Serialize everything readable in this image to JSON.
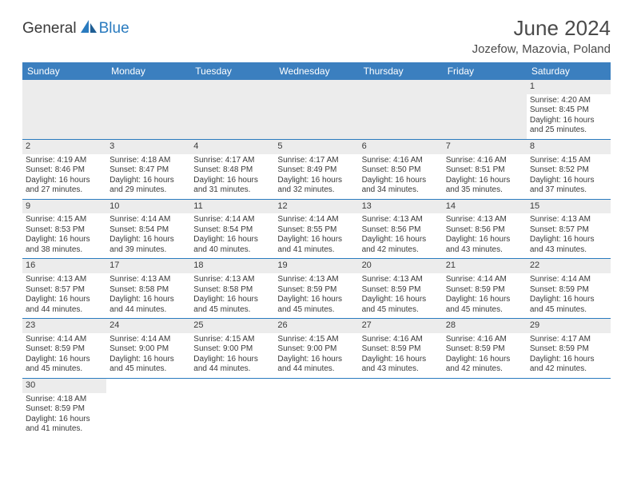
{
  "brand": {
    "part1": "General",
    "part2": "Blue"
  },
  "title": "June 2024",
  "location": "Jozefow, Mazovia, Poland",
  "colors": {
    "header_bg": "#3b7fbf",
    "header_text": "#ffffff",
    "shade": "#ececec",
    "rule": "#2a7bbf",
    "text": "#3a3a3a",
    "brand_blue": "#2a7bbf"
  },
  "weekdays": [
    "Sunday",
    "Monday",
    "Tuesday",
    "Wednesday",
    "Thursday",
    "Friday",
    "Saturday"
  ],
  "weeks": [
    [
      null,
      null,
      null,
      null,
      null,
      null,
      {
        "d": "1",
        "sr": "Sunrise: 4:20 AM",
        "ss": "Sunset: 8:45 PM",
        "dl": "Daylight: 16 hours and 25 minutes."
      }
    ],
    [
      {
        "d": "2",
        "sr": "Sunrise: 4:19 AM",
        "ss": "Sunset: 8:46 PM",
        "dl": "Daylight: 16 hours and 27 minutes."
      },
      {
        "d": "3",
        "sr": "Sunrise: 4:18 AM",
        "ss": "Sunset: 8:47 PM",
        "dl": "Daylight: 16 hours and 29 minutes."
      },
      {
        "d": "4",
        "sr": "Sunrise: 4:17 AM",
        "ss": "Sunset: 8:48 PM",
        "dl": "Daylight: 16 hours and 31 minutes."
      },
      {
        "d": "5",
        "sr": "Sunrise: 4:17 AM",
        "ss": "Sunset: 8:49 PM",
        "dl": "Daylight: 16 hours and 32 minutes."
      },
      {
        "d": "6",
        "sr": "Sunrise: 4:16 AM",
        "ss": "Sunset: 8:50 PM",
        "dl": "Daylight: 16 hours and 34 minutes."
      },
      {
        "d": "7",
        "sr": "Sunrise: 4:16 AM",
        "ss": "Sunset: 8:51 PM",
        "dl": "Daylight: 16 hours and 35 minutes."
      },
      {
        "d": "8",
        "sr": "Sunrise: 4:15 AM",
        "ss": "Sunset: 8:52 PM",
        "dl": "Daylight: 16 hours and 37 minutes."
      }
    ],
    [
      {
        "d": "9",
        "sr": "Sunrise: 4:15 AM",
        "ss": "Sunset: 8:53 PM",
        "dl": "Daylight: 16 hours and 38 minutes."
      },
      {
        "d": "10",
        "sr": "Sunrise: 4:14 AM",
        "ss": "Sunset: 8:54 PM",
        "dl": "Daylight: 16 hours and 39 minutes."
      },
      {
        "d": "11",
        "sr": "Sunrise: 4:14 AM",
        "ss": "Sunset: 8:54 PM",
        "dl": "Daylight: 16 hours and 40 minutes."
      },
      {
        "d": "12",
        "sr": "Sunrise: 4:14 AM",
        "ss": "Sunset: 8:55 PM",
        "dl": "Daylight: 16 hours and 41 minutes."
      },
      {
        "d": "13",
        "sr": "Sunrise: 4:13 AM",
        "ss": "Sunset: 8:56 PM",
        "dl": "Daylight: 16 hours and 42 minutes."
      },
      {
        "d": "14",
        "sr": "Sunrise: 4:13 AM",
        "ss": "Sunset: 8:56 PM",
        "dl": "Daylight: 16 hours and 43 minutes."
      },
      {
        "d": "15",
        "sr": "Sunrise: 4:13 AM",
        "ss": "Sunset: 8:57 PM",
        "dl": "Daylight: 16 hours and 43 minutes."
      }
    ],
    [
      {
        "d": "16",
        "sr": "Sunrise: 4:13 AM",
        "ss": "Sunset: 8:57 PM",
        "dl": "Daylight: 16 hours and 44 minutes."
      },
      {
        "d": "17",
        "sr": "Sunrise: 4:13 AM",
        "ss": "Sunset: 8:58 PM",
        "dl": "Daylight: 16 hours and 44 minutes."
      },
      {
        "d": "18",
        "sr": "Sunrise: 4:13 AM",
        "ss": "Sunset: 8:58 PM",
        "dl": "Daylight: 16 hours and 45 minutes."
      },
      {
        "d": "19",
        "sr": "Sunrise: 4:13 AM",
        "ss": "Sunset: 8:59 PM",
        "dl": "Daylight: 16 hours and 45 minutes."
      },
      {
        "d": "20",
        "sr": "Sunrise: 4:13 AM",
        "ss": "Sunset: 8:59 PM",
        "dl": "Daylight: 16 hours and 45 minutes."
      },
      {
        "d": "21",
        "sr": "Sunrise: 4:14 AM",
        "ss": "Sunset: 8:59 PM",
        "dl": "Daylight: 16 hours and 45 minutes."
      },
      {
        "d": "22",
        "sr": "Sunrise: 4:14 AM",
        "ss": "Sunset: 8:59 PM",
        "dl": "Daylight: 16 hours and 45 minutes."
      }
    ],
    [
      {
        "d": "23",
        "sr": "Sunrise: 4:14 AM",
        "ss": "Sunset: 8:59 PM",
        "dl": "Daylight: 16 hours and 45 minutes."
      },
      {
        "d": "24",
        "sr": "Sunrise: 4:14 AM",
        "ss": "Sunset: 9:00 PM",
        "dl": "Daylight: 16 hours and 45 minutes."
      },
      {
        "d": "25",
        "sr": "Sunrise: 4:15 AM",
        "ss": "Sunset: 9:00 PM",
        "dl": "Daylight: 16 hours and 44 minutes."
      },
      {
        "d": "26",
        "sr": "Sunrise: 4:15 AM",
        "ss": "Sunset: 9:00 PM",
        "dl": "Daylight: 16 hours and 44 minutes."
      },
      {
        "d": "27",
        "sr": "Sunrise: 4:16 AM",
        "ss": "Sunset: 8:59 PM",
        "dl": "Daylight: 16 hours and 43 minutes."
      },
      {
        "d": "28",
        "sr": "Sunrise: 4:16 AM",
        "ss": "Sunset: 8:59 PM",
        "dl": "Daylight: 16 hours and 42 minutes."
      },
      {
        "d": "29",
        "sr": "Sunrise: 4:17 AM",
        "ss": "Sunset: 8:59 PM",
        "dl": "Daylight: 16 hours and 42 minutes."
      }
    ],
    [
      {
        "d": "30",
        "sr": "Sunrise: 4:18 AM",
        "ss": "Sunset: 8:59 PM",
        "dl": "Daylight: 16 hours and 41 minutes."
      },
      null,
      null,
      null,
      null,
      null,
      null
    ]
  ]
}
